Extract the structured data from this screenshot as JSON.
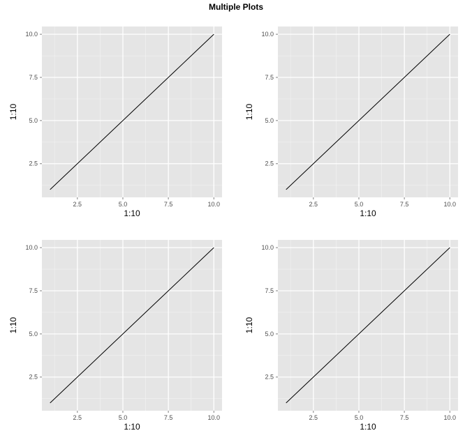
{
  "figure": {
    "title": "Multiple Plots"
  },
  "colors": {
    "panel_background": "#e5e5e5",
    "grid_major": "#ffffff",
    "grid_minor": "#f2f2f2",
    "line": "#000000",
    "tick_label": "#4d4d4d"
  },
  "chart_data": [
    {
      "type": "line",
      "position": "top-left",
      "xlabel": "1:10",
      "ylabel": "1:10",
      "x": [
        1,
        2,
        3,
        4,
        5,
        6,
        7,
        8,
        9,
        10
      ],
      "y": [
        1,
        2,
        3,
        4,
        5,
        6,
        7,
        8,
        9,
        10
      ],
      "xlim": [
        0.55,
        10.45
      ],
      "ylim": [
        0.55,
        10.45
      ],
      "xticks": [
        2.5,
        5.0,
        7.5,
        10.0
      ],
      "xtick_labels": [
        "2.5",
        "5.0",
        "7.5",
        "10.0"
      ],
      "yticks": [
        2.5,
        5.0,
        7.5,
        10.0
      ],
      "ytick_labels": [
        "2.5",
        "5.0",
        "7.5",
        "10.0"
      ],
      "grid": true,
      "legend": "none"
    },
    {
      "type": "line",
      "position": "top-right",
      "xlabel": "1:10",
      "ylabel": "1:10",
      "x": [
        1,
        2,
        3,
        4,
        5,
        6,
        7,
        8,
        9,
        10
      ],
      "y": [
        1,
        2,
        3,
        4,
        5,
        6,
        7,
        8,
        9,
        10
      ],
      "xlim": [
        0.55,
        10.45
      ],
      "ylim": [
        0.55,
        10.45
      ],
      "xticks": [
        2.5,
        5.0,
        7.5,
        10.0
      ],
      "xtick_labels": [
        "2.5",
        "5.0",
        "7.5",
        "10.0"
      ],
      "yticks": [
        2.5,
        5.0,
        7.5,
        10.0
      ],
      "ytick_labels": [
        "2.5",
        "5.0",
        "7.5",
        "10.0"
      ],
      "grid": true,
      "legend": "none"
    },
    {
      "type": "line",
      "position": "bottom-left",
      "xlabel": "1:10",
      "ylabel": "1:10",
      "x": [
        1,
        2,
        3,
        4,
        5,
        6,
        7,
        8,
        9,
        10
      ],
      "y": [
        1,
        2,
        3,
        4,
        5,
        6,
        7,
        8,
        9,
        10
      ],
      "xlim": [
        0.55,
        10.45
      ],
      "ylim": [
        0.55,
        10.45
      ],
      "xticks": [
        2.5,
        5.0,
        7.5,
        10.0
      ],
      "xtick_labels": [
        "2.5",
        "5.0",
        "7.5",
        "10.0"
      ],
      "yticks": [
        2.5,
        5.0,
        7.5,
        10.0
      ],
      "ytick_labels": [
        "2.5",
        "5.0",
        "7.5",
        "10.0"
      ],
      "grid": true,
      "legend": "none"
    },
    {
      "type": "line",
      "position": "bottom-right",
      "xlabel": "1:10",
      "ylabel": "1:10",
      "x": [
        1,
        2,
        3,
        4,
        5,
        6,
        7,
        8,
        9,
        10
      ],
      "y": [
        1,
        2,
        3,
        4,
        5,
        6,
        7,
        8,
        9,
        10
      ],
      "xlim": [
        0.55,
        10.45
      ],
      "ylim": [
        0.55,
        10.45
      ],
      "xticks": [
        2.5,
        5.0,
        7.5,
        10.0
      ],
      "xtick_labels": [
        "2.5",
        "5.0",
        "7.5",
        "10.0"
      ],
      "yticks": [
        2.5,
        5.0,
        7.5,
        10.0
      ],
      "ytick_labels": [
        "2.5",
        "5.0",
        "7.5",
        "10.0"
      ],
      "grid": true,
      "legend": "none"
    }
  ]
}
